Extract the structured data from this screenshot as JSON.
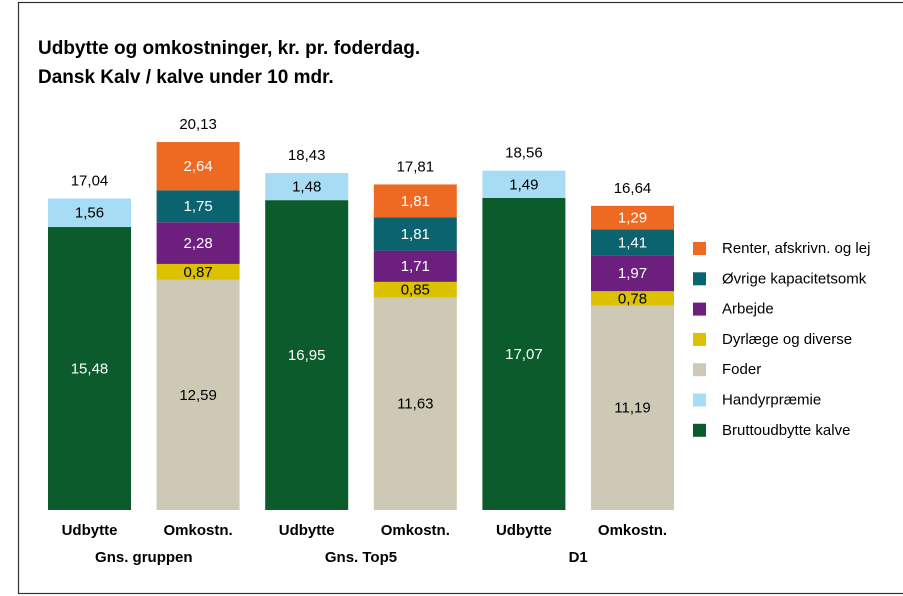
{
  "chart_data": {
    "type": "stacked_bar",
    "title": "Udbytte og omkostninger, kr. pr. foderdag.",
    "subtitle": "Dansk Kalv / kalve under 10 mdr.",
    "categories": [
      "Udbytte",
      "Omkostn.",
      "Udbytte",
      "Omkostn.",
      "Udbytte",
      "Omkostn."
    ],
    "groups": [
      "Gns. gruppen",
      "Gns. Top5",
      "D1"
    ],
    "series": [
      {
        "name": "Bruttoudbytte kalve",
        "color": "#0b5b2c",
        "values": [
          15.48,
          null,
          16.95,
          null,
          17.07,
          null
        ],
        "value_labels": [
          "15,48",
          null,
          "16,95",
          null,
          "17,07",
          null
        ]
      },
      {
        "name": "Handyrpræmie",
        "color": "#a6dcf4",
        "values": [
          1.56,
          null,
          1.48,
          null,
          1.49,
          null
        ],
        "value_labels": [
          "1,56",
          null,
          "1,48",
          null,
          "1,49",
          null
        ]
      },
      {
        "name": "Foder",
        "color": "#cdc9b4",
        "values": [
          null,
          12.59,
          null,
          11.63,
          null,
          11.19
        ],
        "value_labels": [
          null,
          "12,59",
          null,
          "11,63",
          null,
          "11,19"
        ]
      },
      {
        "name": "Dyrlæge og diverse",
        "color": "#dcc100",
        "values": [
          null,
          0.87,
          null,
          0.85,
          null,
          0.78
        ],
        "value_labels": [
          null,
          "0,87",
          null,
          "0,85",
          null,
          "0,78"
        ]
      },
      {
        "name": "Arbejde",
        "color": "#6d1f7d",
        "values": [
          null,
          2.28,
          null,
          1.71,
          null,
          1.97
        ],
        "value_labels": [
          null,
          "2,28",
          null,
          "1,71",
          null,
          "1,97"
        ]
      },
      {
        "name": "Øvrige kapacitetsomk",
        "color": "#0b6370",
        "values": [
          null,
          1.75,
          null,
          1.81,
          null,
          1.41
        ],
        "value_labels": [
          null,
          "1,75",
          null,
          "1,81",
          null,
          "1,41"
        ]
      },
      {
        "name": "Renter, afskrivn. og lej",
        "color": "#ee6a23",
        "values": [
          null,
          2.64,
          null,
          1.81,
          null,
          1.29
        ],
        "value_labels": [
          null,
          "2,64",
          null,
          "1,81",
          null,
          "1,29"
        ]
      }
    ],
    "totals": [
      17.04,
      20.13,
      18.43,
      17.81,
      18.56,
      16.64
    ],
    "total_labels": [
      "17,04",
      "20,13",
      "18,43",
      "17,81",
      "18,56",
      "16,64"
    ],
    "legend": "right"
  }
}
